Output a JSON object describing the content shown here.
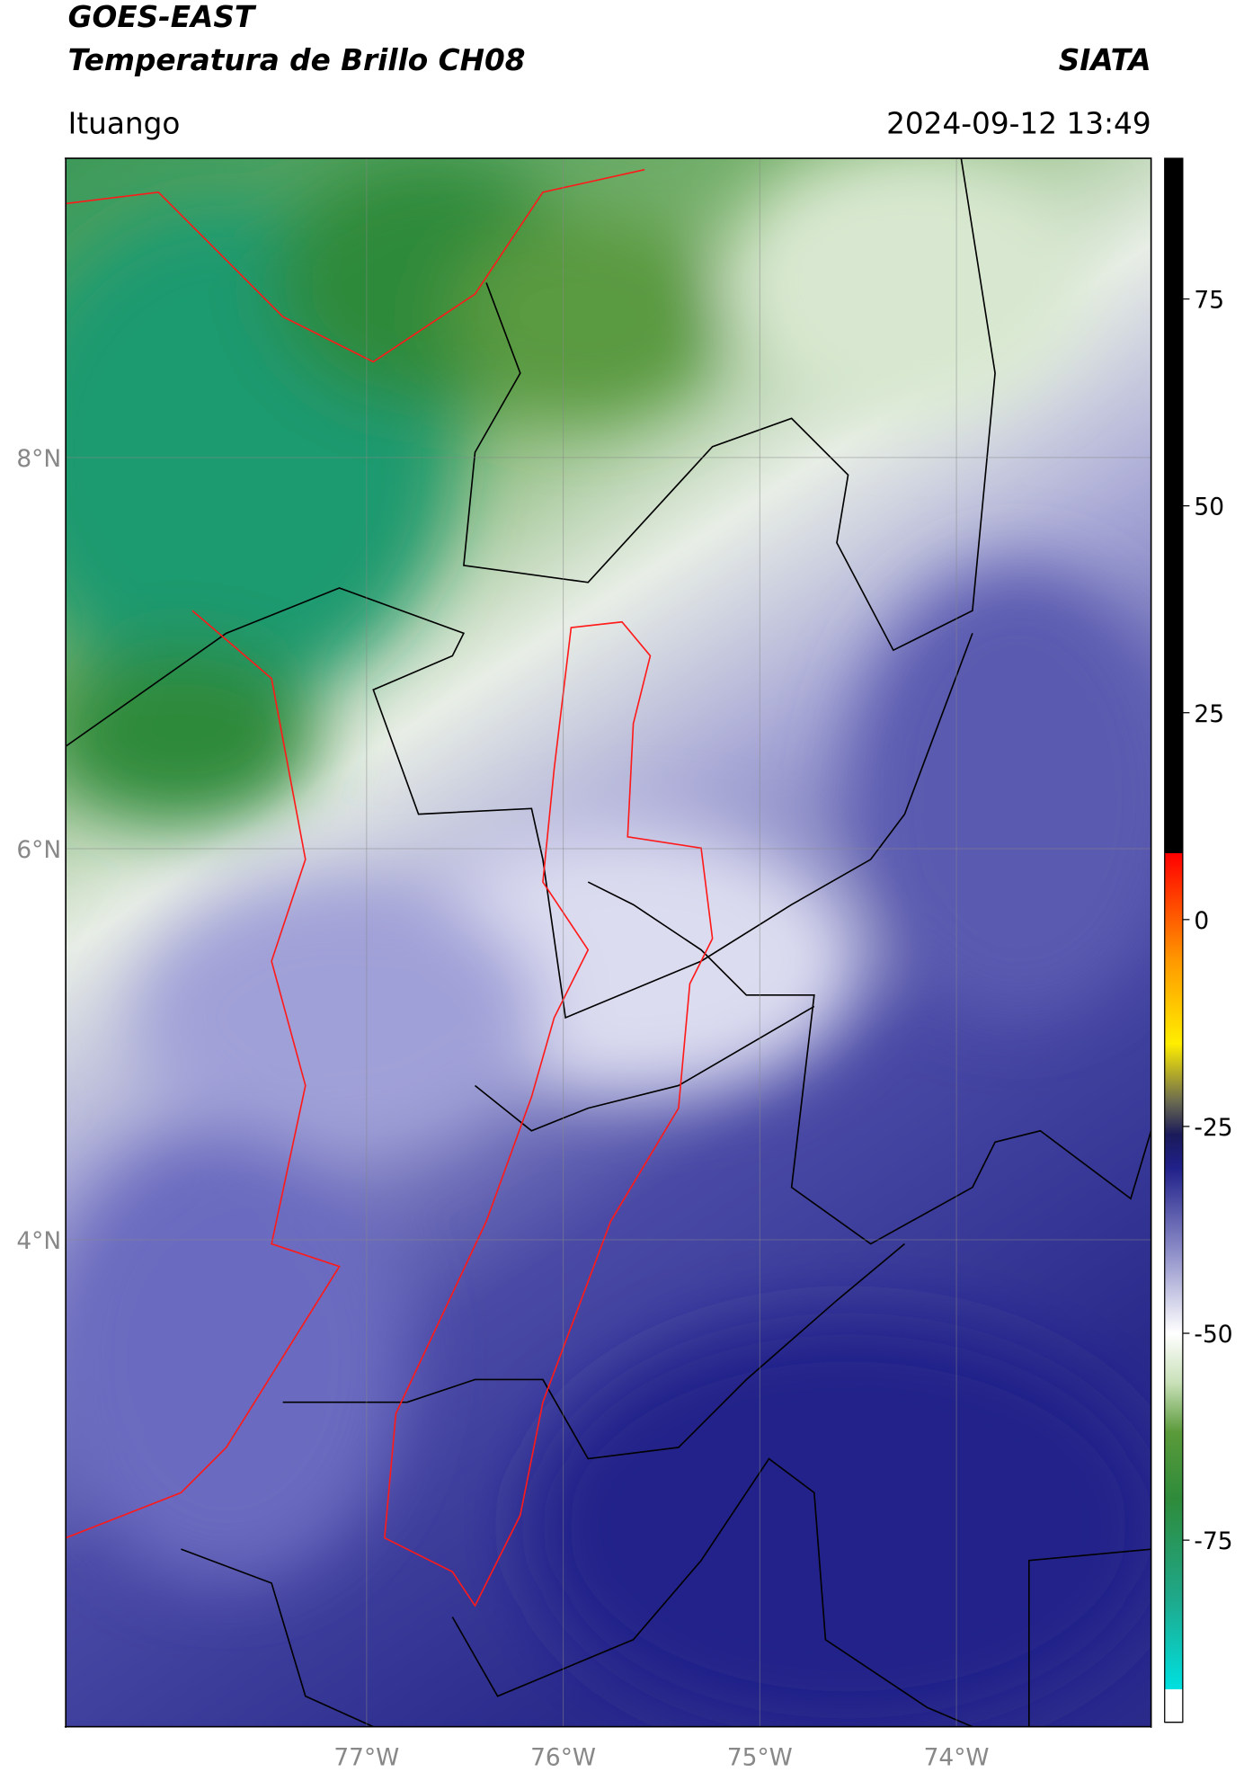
{
  "chart_data": {
    "type": "map",
    "title": "GOES-EAST",
    "subtitle": "Temperatura de Brillo CH08",
    "brand": "SIATA",
    "location": "Ituango",
    "timestamp": "2024-09-12 13:49",
    "xlim": [
      -78.53,
      -73.01
    ],
    "ylim": [
      1.51,
      9.53
    ],
    "xticks": [
      {
        "value": -77,
        "label": "77°W"
      },
      {
        "value": -76,
        "label": "76°W"
      },
      {
        "value": -75,
        "label": "75°W"
      },
      {
        "value": -74,
        "label": "74°W"
      }
    ],
    "yticks": [
      {
        "value": 4,
        "label": "4°N"
      },
      {
        "value": 6,
        "label": "6°N"
      },
      {
        "value": 8,
        "label": "8°N"
      }
    ],
    "grid": true,
    "colorbar": {
      "lim": [
        -97,
        92
      ],
      "ticks": [
        -75,
        -50,
        -25,
        0,
        25,
        50,
        75
      ],
      "colormap": [
        {
          "value": -97,
          "color": "#ffffff"
        },
        {
          "value": -93,
          "color": "#ffffff"
        },
        {
          "value": -93,
          "color": "#00e0e0"
        },
        {
          "value": -82,
          "color": "#1fa88a"
        },
        {
          "value": -70,
          "color": "#2e8b3a"
        },
        {
          "value": -62,
          "color": "#5a9a3a"
        },
        {
          "value": -56,
          "color": "#c8e0b8"
        },
        {
          "value": -50,
          "color": "#ffffff"
        },
        {
          "value": -40,
          "color": "#8c8cc8"
        },
        {
          "value": -30,
          "color": "#20208a"
        },
        {
          "value": -26,
          "color": "#1a1a5a"
        },
        {
          "value": -22,
          "color": "#6a6a50"
        },
        {
          "value": -15,
          "color": "#ffee00"
        },
        {
          "value": -5,
          "color": "#ff9900"
        },
        {
          "value": 8,
          "color": "#ff0000"
        },
        {
          "value": 8,
          "color": "#000000"
        },
        {
          "value": 92,
          "color": "#000000"
        }
      ]
    }
  }
}
